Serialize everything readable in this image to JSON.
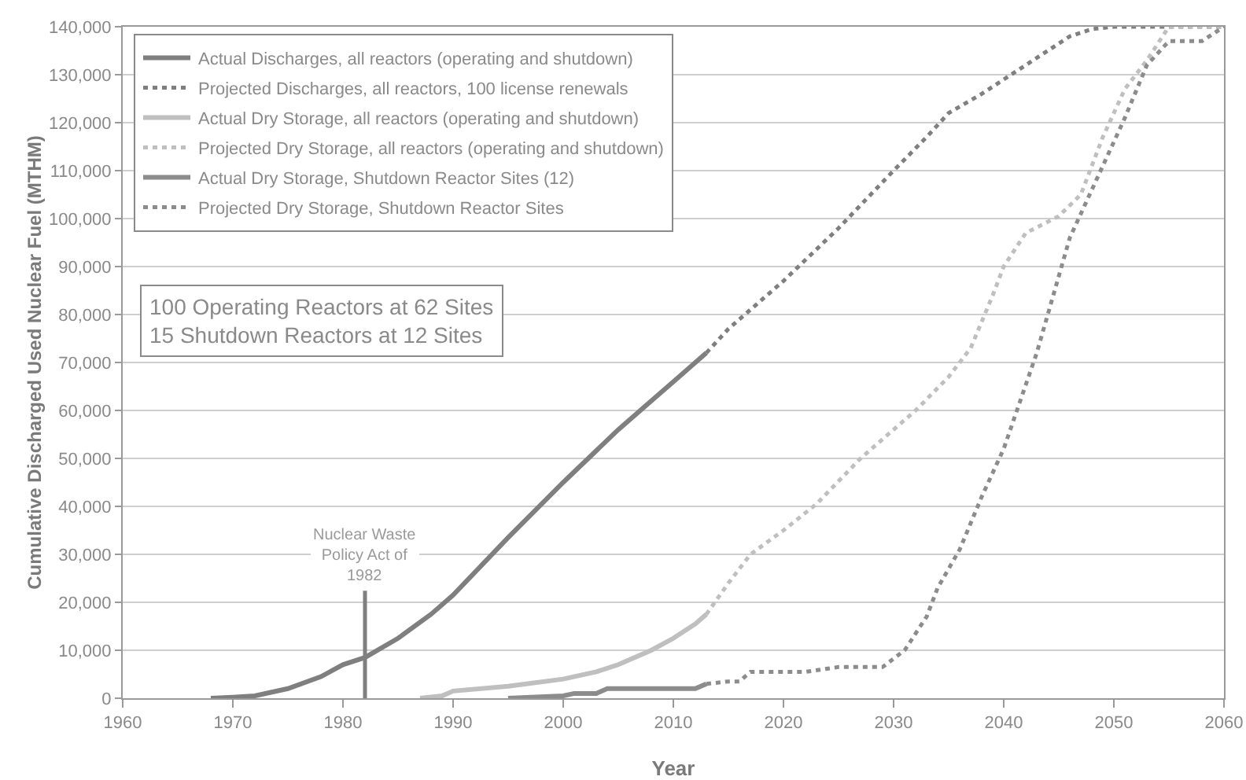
{
  "chart_data": {
    "type": "line",
    "xlabel": "Year",
    "ylabel": "Cumulative Discharged Used Nuclear Fuel (MTHM)",
    "xlim": [
      1960,
      2060
    ],
    "xticks": [
      1960,
      1970,
      1980,
      1990,
      2000,
      2010,
      2020,
      2030,
      2040,
      2050,
      2060
    ],
    "ylim": [
      0,
      140000
    ],
    "yticks": [
      0,
      {
        "value": 10000,
        "label": "10,000"
      },
      {
        "value": 20000,
        "label": "20,000"
      },
      {
        "value": 30000,
        "label": "30,000"
      },
      {
        "value": 40000,
        "label": "40,000"
      },
      {
        "value": 50000,
        "label": "50,000"
      },
      {
        "value": 60000,
        "label": "60,000"
      },
      {
        "value": 70000,
        "label": "70,000"
      },
      {
        "value": 80000,
        "label": "80,000"
      },
      {
        "value": 90000,
        "label": "90,000"
      },
      {
        "value": 100000,
        "label": "100,000"
      },
      {
        "value": 110000,
        "label": "110,000"
      },
      {
        "value": 120000,
        "label": "120,000"
      },
      {
        "value": 130000,
        "label": "130,000"
      },
      {
        "value": 140000,
        "label": "140,000"
      }
    ],
    "grid": "y",
    "legend": "top left",
    "marker": "none",
    "series": [
      {
        "name": "Actual Discharges, all reactors (operating and shutdown)",
        "color": "#7f7f7f",
        "line_style": "solid",
        "x": [
          1968,
          1970,
          1972,
          1975,
          1978,
          1980,
          1982,
          1985,
          1988,
          1990,
          1995,
          2000,
          2005,
          2010,
          2013
        ],
        "values": [
          0,
          200,
          500,
          2000,
          4500,
          7000,
          8500,
          12500,
          17500,
          21500,
          33500,
          45000,
          56000,
          66000,
          72000
        ]
      },
      {
        "name": "Projected Discharges, all reactors, 100 license renewals",
        "color": "#7f7f7f",
        "line_style": "dotted",
        "x": [
          2013,
          2015,
          2020,
          2025,
          2030,
          2033,
          2035,
          2038,
          2041,
          2044,
          2046,
          2048,
          2050,
          2055,
          2060
        ],
        "values": [
          72000,
          77000,
          87000,
          98000,
          110000,
          117000,
          122000,
          126000,
          130500,
          135000,
          138000,
          139500,
          140000,
          140000,
          140000
        ]
      },
      {
        "name": "Actual Dry Storage, all reactors (operating and shutdown)",
        "color": "#bfbfbf",
        "line_style": "solid",
        "x": [
          1987,
          1989,
          1990,
          1995,
          2000,
          2003,
          2005,
          2008,
          2010,
          2012,
          2013
        ],
        "values": [
          0,
          500,
          1500,
          2500,
          4000,
          5500,
          7000,
          10000,
          12500,
          15500,
          17500
        ]
      },
      {
        "name": "Projected Dry Storage, all reactors (operating and shutdown)",
        "color": "#bfbfbf",
        "line_style": "dotted",
        "x": [
          2013,
          2015,
          2017,
          2020,
          2023,
          2027,
          2032,
          2035,
          2037,
          2039,
          2040,
          2042,
          2045,
          2047,
          2049,
          2051,
          2053,
          2055,
          2060
        ],
        "values": [
          17500,
          24000,
          30000,
          35000,
          40500,
          50000,
          60000,
          67000,
          73000,
          84000,
          90000,
          97000,
          100500,
          105000,
          117000,
          127000,
          133000,
          140000,
          140000
        ]
      },
      {
        "name": "Actual Dry Storage, Shutdown Reactor Sites (12)",
        "color": "#8c8c8c",
        "line_style": "solid",
        "x": [
          1995,
          2000,
          2001,
          2003,
          2004,
          2012,
          2013
        ],
        "values": [
          0,
          500,
          1000,
          1000,
          2000,
          2000,
          3000
        ]
      },
      {
        "name": "Projected Dry Storage, Shutdown Reactor Sites",
        "color": "#8c8c8c",
        "line_style": "dotted",
        "x": [
          2013,
          2015,
          2016,
          2017,
          2022,
          2025,
          2029,
          2031,
          2033,
          2034,
          2036,
          2038,
          2040,
          2043,
          2046,
          2049,
          2051,
          2053,
          2055,
          2058,
          2060
        ],
        "values": [
          3000,
          3500,
          3500,
          5500,
          5500,
          6500,
          6500,
          10000,
          17000,
          23000,
          31000,
          42000,
          52000,
          72000,
          96000,
          111000,
          121000,
          132000,
          137000,
          137000,
          140000
        ]
      }
    ],
    "ref_lines": [
      {
        "axis": "x",
        "value": 1982,
        "label": "Nuclear Waste\nPolicy Act of\n1982",
        "color": "#7f7f7f"
      }
    ],
    "annotations": [
      "100 Operating Reactors at 62 Sites\n15 Shutdown Reactors at 12 Sites"
    ]
  }
}
